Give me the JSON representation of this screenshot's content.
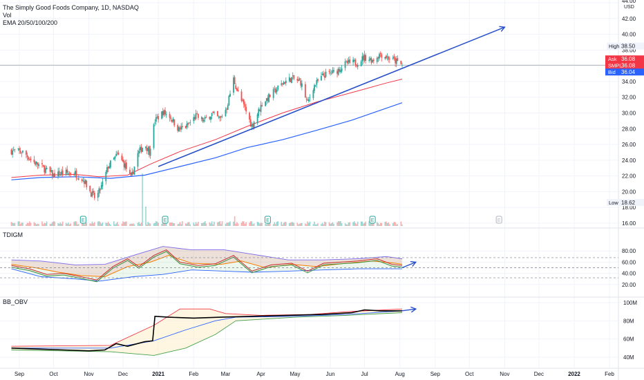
{
  "header": {
    "title": "The Simply Good Foods Company, 1D, NASDAQ",
    "vol": "Vol",
    "ema": "EMA 20/50/100/200"
  },
  "panes": {
    "indicator1": "TDIGM",
    "indicator2": "BB_OBV"
  },
  "price_axis": {
    "unit": "USD",
    "ticks": [
      "44.00",
      "42.00",
      "40.00",
      "38.00",
      "36.00",
      "34.00",
      "32.00",
      "30.00",
      "28.00",
      "26.00",
      "24.00",
      "22.00",
      "20.00",
      "18.00",
      "16.00"
    ],
    "markers": [
      {
        "label": "High",
        "value": "38.50",
        "kind": "high"
      },
      {
        "label": "Ask",
        "value": "36.08",
        "kind": "ask"
      },
      {
        "label": "SMPL",
        "value": "36.08",
        "kind": "last"
      },
      {
        "label": "Bid",
        "value": "36.04",
        "kind": "bid"
      },
      {
        "label": "Low",
        "value": "18.62",
        "kind": "low"
      }
    ]
  },
  "tdi_axis": {
    "ticks": [
      "80.00",
      "60.00",
      "40.00",
      "20.00"
    ]
  },
  "obv_axis": {
    "ticks": [
      "100M",
      "80M",
      "60M",
      "40M"
    ]
  },
  "time_axis": {
    "ticks": [
      "Sep",
      "Oct",
      "Nov",
      "Dec",
      "2021",
      "Feb",
      "Mar",
      "Apr",
      "May",
      "Jun",
      "Jul",
      "Aug",
      "Sep",
      "Oct",
      "Nov",
      "Dec",
      "2022",
      "Feb"
    ]
  },
  "earnings_marker": "E",
  "colors": {
    "up": "#26a69a",
    "down": "#ef5350",
    "ema_red": "#f23645",
    "ema_blue": "#2962ff",
    "trend": "#2850c8",
    "grid": "#f0f3fa",
    "axis_text": "#131722",
    "ask": "#f23645",
    "bid": "#2962ff",
    "neutral": "#b2b5be"
  },
  "chart_data": [
    {
      "type": "candlestick",
      "title": "The Simply Good Foods Company, 1D, NASDAQ",
      "ylim": [
        16,
        44
      ],
      "close_path": [
        [
          "2020-08-25",
          25.2
        ],
        [
          "2020-09-05",
          25.0
        ],
        [
          "2020-09-12",
          23.9
        ],
        [
          "2020-09-20",
          23.2
        ],
        [
          "2020-10-01",
          22.1
        ],
        [
          "2020-10-10",
          22.4
        ],
        [
          "2020-10-20",
          22.3
        ],
        [
          "2020-10-28",
          21.4
        ],
        [
          "2020-11-03",
          19.8
        ],
        [
          "2020-11-07",
          19.1
        ],
        [
          "2020-11-12",
          20.6
        ],
        [
          "2020-11-18",
          23.2
        ],
        [
          "2020-11-26",
          24.7
        ],
        [
          "2020-12-03",
          23.3
        ],
        [
          "2020-12-08",
          21.6
        ],
        [
          "2020-12-14",
          24.8
        ],
        [
          "2020-12-20",
          26.1
        ],
        [
          "2020-12-24",
          25.1
        ],
        [
          "2020-12-29",
          29.0
        ],
        [
          "2021-01-05",
          30.1
        ],
        [
          "2021-01-11",
          29.6
        ],
        [
          "2021-01-19",
          27.9
        ],
        [
          "2021-01-26",
          28.3
        ],
        [
          "2021-02-03",
          29.6
        ],
        [
          "2021-02-10",
          29.0
        ],
        [
          "2021-02-17",
          29.9
        ],
        [
          "2021-02-24",
          29.2
        ],
        [
          "2021-03-02",
          30.7
        ],
        [
          "2021-03-08",
          34.3
        ],
        [
          "2021-03-13",
          32.1
        ],
        [
          "2021-03-18",
          30.6
        ],
        [
          "2021-03-24",
          28.3
        ],
        [
          "2021-04-02",
          31.2
        ],
        [
          "2021-04-12",
          32.6
        ],
        [
          "2021-04-21",
          33.9
        ],
        [
          "2021-04-28",
          34.4
        ],
        [
          "2021-05-06",
          33.9
        ],
        [
          "2021-05-12",
          31.2
        ],
        [
          "2021-05-17",
          33.3
        ],
        [
          "2021-05-26",
          34.8
        ],
        [
          "2021-06-05",
          35.2
        ],
        [
          "2021-06-15",
          36.3
        ],
        [
          "2021-06-24",
          36.4
        ],
        [
          "2021-07-01",
          37.1
        ],
        [
          "2021-07-08",
          36.7
        ],
        [
          "2021-07-15",
          37.5
        ],
        [
          "2021-07-22",
          37.0
        ],
        [
          "2021-07-28",
          36.6
        ],
        [
          "2021-08-03",
          36.08
        ]
      ],
      "ema_red": [
        [
          "2020-08-25",
          21.8
        ],
        [
          "2020-09-20",
          22.1
        ],
        [
          "2020-10-20",
          22.2
        ],
        [
          "2020-11-10",
          21.9
        ],
        [
          "2020-12-05",
          22.1
        ],
        [
          "2020-12-25",
          23.5
        ],
        [
          "2021-01-20",
          25.1
        ],
        [
          "2021-02-20",
          26.6
        ],
        [
          "2021-03-20",
          28.3
        ],
        [
          "2021-04-20",
          30.0
        ],
        [
          "2021-05-20",
          31.4
        ],
        [
          "2021-06-20",
          32.6
        ],
        [
          "2021-07-20",
          33.8
        ],
        [
          "2021-08-03",
          34.3
        ]
      ],
      "ema_blue": [
        [
          "2020-08-25",
          21.5
        ],
        [
          "2020-09-20",
          21.8
        ],
        [
          "2020-10-20",
          21.9
        ],
        [
          "2020-11-20",
          21.7
        ],
        [
          "2020-12-20",
          22.1
        ],
        [
          "2021-01-20",
          23.2
        ],
        [
          "2021-02-20",
          24.3
        ],
        [
          "2021-03-20",
          25.6
        ],
        [
          "2021-04-20",
          26.6
        ],
        [
          "2021-05-20",
          27.8
        ],
        [
          "2021-06-20",
          29.1
        ],
        [
          "2021-07-20",
          30.6
        ],
        [
          "2021-08-03",
          31.3
        ]
      ],
      "trendline": [
        [
          "2021-01-01",
          23.2
        ],
        [
          "2021-11-01",
          40.9
        ]
      ],
      "horizontal_level": 36.08,
      "earnings_dates": [
        "2020-10-27",
        "2021-01-07",
        "2021-04-07",
        "2021-07-08",
        "2021-10-27"
      ]
    },
    {
      "type": "line",
      "name": "TDIGM",
      "ylim": [
        0,
        100
      ],
      "levels": [
        68,
        50,
        32
      ],
      "fast": [
        [
          "2020-08-25",
          54
        ],
        [
          "2020-09-10",
          48
        ],
        [
          "2020-09-25",
          38
        ],
        [
          "2020-10-10",
          40
        ],
        [
          "2020-10-25",
          34
        ],
        [
          "2020-11-08",
          28
        ],
        [
          "2020-11-22",
          52
        ],
        [
          "2020-12-05",
          66
        ],
        [
          "2020-12-15",
          52
        ],
        [
          "2020-12-28",
          72
        ],
        [
          "2021-01-08",
          82
        ],
        [
          "2021-01-20",
          60
        ],
        [
          "2021-02-05",
          54
        ],
        [
          "2021-02-20",
          57
        ],
        [
          "2021-03-08",
          72
        ],
        [
          "2021-03-24",
          44
        ],
        [
          "2021-04-10",
          55
        ],
        [
          "2021-04-28",
          58
        ],
        [
          "2021-05-12",
          44
        ],
        [
          "2021-05-26",
          58
        ],
        [
          "2021-06-10",
          60
        ],
        [
          "2021-06-25",
          62
        ],
        [
          "2021-07-12",
          66
        ],
        [
          "2021-07-25",
          56
        ],
        [
          "2021-08-03",
          54
        ]
      ],
      "slow": [
        [
          "2020-08-25",
          56
        ],
        [
          "2020-09-15",
          50
        ],
        [
          "2020-10-05",
          42
        ],
        [
          "2020-10-25",
          36
        ],
        [
          "2020-11-15",
          34
        ],
        [
          "2020-12-05",
          52
        ],
        [
          "2020-12-25",
          60
        ],
        [
          "2021-01-10",
          72
        ],
        [
          "2021-01-30",
          58
        ],
        [
          "2021-02-25",
          56
        ],
        [
          "2021-03-15",
          62
        ],
        [
          "2021-04-05",
          50
        ],
        [
          "2021-04-28",
          56
        ],
        [
          "2021-05-20",
          52
        ],
        [
          "2021-06-15",
          58
        ],
        [
          "2021-07-08",
          62
        ],
        [
          "2021-07-28",
          58
        ],
        [
          "2021-08-03",
          56
        ]
      ],
      "upper_band": [
        [
          "2020-08-25",
          64
        ],
        [
          "2020-09-20",
          62
        ],
        [
          "2020-10-20",
          55
        ],
        [
          "2020-11-15",
          56
        ],
        [
          "2020-12-10",
          72
        ],
        [
          "2021-01-05",
          88
        ],
        [
          "2021-01-30",
          82
        ],
        [
          "2021-02-28",
          82
        ],
        [
          "2021-03-25",
          74
        ],
        [
          "2021-04-25",
          64
        ],
        [
          "2021-05-25",
          64
        ],
        [
          "2021-06-25",
          66
        ],
        [
          "2021-07-20",
          70
        ],
        [
          "2021-08-03",
          66
        ]
      ],
      "lower_band": [
        [
          "2020-08-25",
          48
        ],
        [
          "2020-09-20",
          34
        ],
        [
          "2020-10-20",
          30
        ],
        [
          "2020-11-10",
          26
        ],
        [
          "2020-12-10",
          34
        ],
        [
          "2021-01-05",
          38
        ],
        [
          "2021-01-30",
          46
        ],
        [
          "2021-02-28",
          44
        ],
        [
          "2021-03-25",
          42
        ],
        [
          "2021-04-25",
          44
        ],
        [
          "2021-05-25",
          46
        ],
        [
          "2021-06-25",
          48
        ],
        [
          "2021-07-20",
          48
        ],
        [
          "2021-08-03",
          48
        ]
      ],
      "arrow": [
        [
          "2021-08-03",
          50
        ],
        [
          "2021-08-15",
          60
        ]
      ]
    },
    {
      "type": "line",
      "name": "BB_OBV",
      "ylim": [
        35,
        102
      ],
      "obv": [
        [
          "2020-08-25",
          50
        ],
        [
          "2020-09-15",
          49
        ],
        [
          "2020-10-10",
          48
        ],
        [
          "2020-11-01",
          47
        ],
        [
          "2020-11-15",
          48
        ],
        [
          "2020-11-25",
          55
        ],
        [
          "2020-12-05",
          52
        ],
        [
          "2020-12-20",
          57
        ],
        [
          "2020-12-27",
          58
        ],
        [
          "2020-12-29",
          85
        ],
        [
          "2021-01-10",
          84
        ],
        [
          "2021-02-01",
          83
        ],
        [
          "2021-02-25",
          84
        ],
        [
          "2021-03-25",
          85
        ],
        [
          "2021-04-25",
          86
        ],
        [
          "2021-05-25",
          87
        ],
        [
          "2021-06-20",
          89
        ],
        [
          "2021-07-01",
          92
        ],
        [
          "2021-07-15",
          91
        ],
        [
          "2021-08-03",
          91
        ]
      ],
      "upper": [
        [
          "2020-08-25",
          52
        ],
        [
          "2020-11-20",
          53
        ],
        [
          "2020-12-28",
          75
        ],
        [
          "2021-01-20",
          93
        ],
        [
          "2021-02-15",
          93
        ],
        [
          "2021-03-01",
          88
        ],
        [
          "2021-04-01",
          86
        ],
        [
          "2021-05-15",
          87
        ],
        [
          "2021-06-15",
          90
        ],
        [
          "2021-08-03",
          93
        ]
      ],
      "middle": [
        [
          "2020-08-25",
          50
        ],
        [
          "2020-11-20",
          50
        ],
        [
          "2020-12-28",
          58
        ],
        [
          "2021-01-25",
          70
        ],
        [
          "2021-02-20",
          80
        ],
        [
          "2021-03-10",
          84
        ],
        [
          "2021-05-01",
          85
        ],
        [
          "2021-06-15",
          87
        ],
        [
          "2021-08-03",
          91
        ]
      ],
      "lower": [
        [
          "2020-08-25",
          48
        ],
        [
          "2020-11-20",
          46
        ],
        [
          "2020-12-28",
          42
        ],
        [
          "2021-01-25",
          50
        ],
        [
          "2021-02-20",
          65
        ],
        [
          "2021-03-10",
          80
        ],
        [
          "2021-05-01",
          84
        ],
        [
          "2021-06-15",
          86
        ],
        [
          "2021-08-03",
          89
        ]
      ],
      "arrow": [
        [
          "2021-08-03",
          91
        ],
        [
          "2021-08-15",
          93
        ]
      ]
    }
  ]
}
